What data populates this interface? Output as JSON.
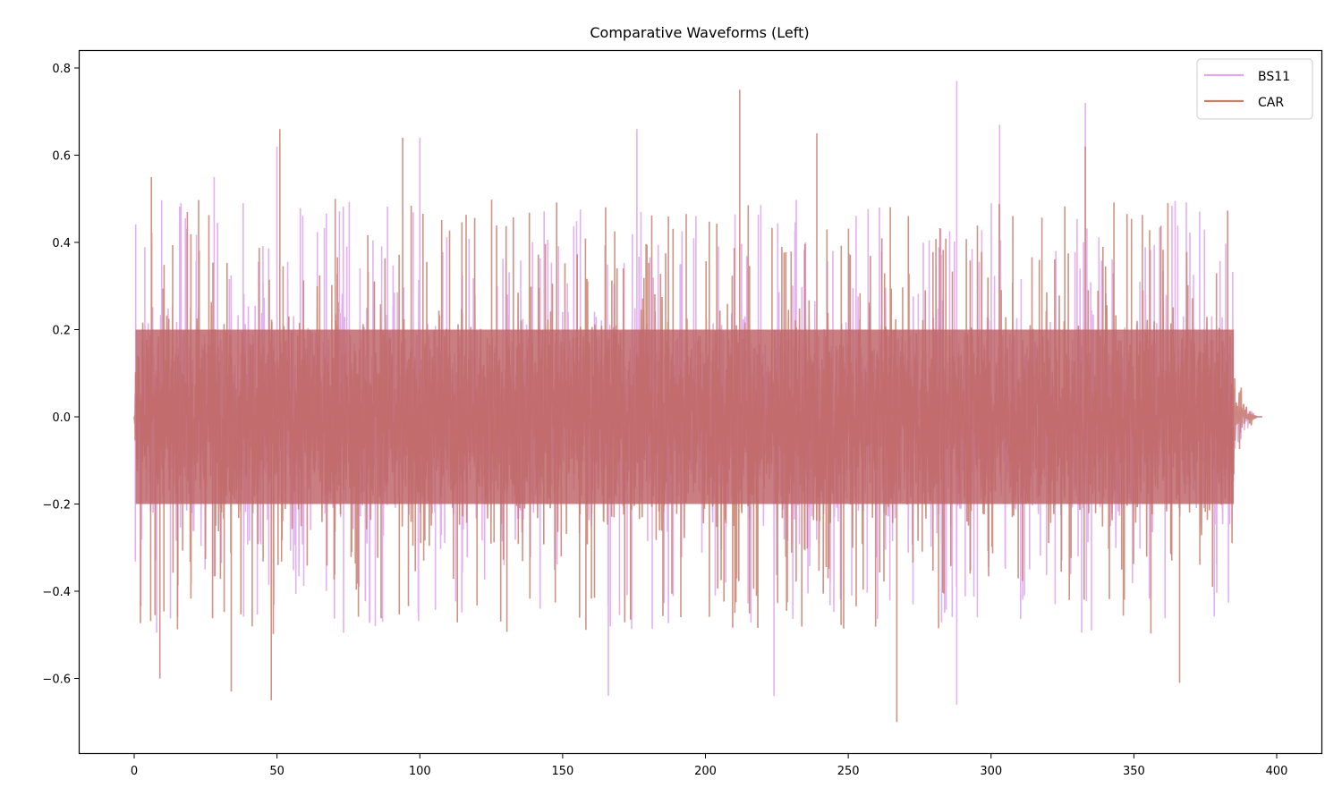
{
  "chart_data": {
    "type": "line",
    "title": "Comparative Waveforms (Left)",
    "xlabel": "",
    "ylabel": "",
    "xlim": [
      -23,
      412
    ],
    "ylim": [
      -0.76,
      0.84
    ],
    "x_ticks": [
      0,
      50,
      100,
      150,
      200,
      250,
      300,
      350,
      400
    ],
    "x_tick_labels": [
      "0",
      "50",
      "100",
      "150",
      "200",
      "250",
      "300",
      "350",
      "400"
    ],
    "y_ticks": [
      -0.6,
      -0.4,
      -0.2,
      0.0,
      0.2,
      0.4,
      0.6,
      0.8
    ],
    "y_tick_labels": [
      "−0.6",
      "−0.4",
      "−0.2",
      "0.0",
      "0.2",
      "0.4",
      "0.6",
      "0.8"
    ],
    "grid": false,
    "legend_position": "upper right",
    "series": [
      {
        "name": "BS11",
        "color": "#e0a8ee",
        "x_range": [
          0,
          395
        ],
        "signal_end": 385,
        "typical_envelope": 0.25,
        "max": 0.77,
        "min": -0.66,
        "peaks": [
          [
            28,
            0.55
          ],
          [
            50,
            0.62
          ],
          [
            100,
            0.64
          ],
          [
            176,
            0.66
          ],
          [
            288,
            0.77
          ],
          [
            303,
            0.67
          ],
          [
            333,
            0.72
          ],
          [
            288,
            -0.66
          ],
          [
            166,
            -0.64
          ],
          [
            224,
            -0.64
          ]
        ]
      },
      {
        "name": "CAR",
        "color": "#c8806e",
        "x_range": [
          0,
          395
        ],
        "signal_end": 385,
        "typical_envelope": 0.25,
        "max": 0.75,
        "min": -0.7,
        "peaks": [
          [
            6,
            0.55
          ],
          [
            51,
            0.66
          ],
          [
            94,
            0.64
          ],
          [
            212,
            0.75
          ],
          [
            239,
            0.65
          ],
          [
            333,
            0.62
          ],
          [
            9,
            -0.6
          ],
          [
            34,
            -0.63
          ],
          [
            48,
            -0.65
          ],
          [
            267,
            -0.7
          ],
          [
            366,
            -0.61
          ]
        ]
      }
    ]
  },
  "legend": {
    "items": [
      {
        "label": "BS11",
        "color": "#e0a8ee"
      },
      {
        "label": "CAR",
        "color": "#c8806e"
      }
    ]
  }
}
